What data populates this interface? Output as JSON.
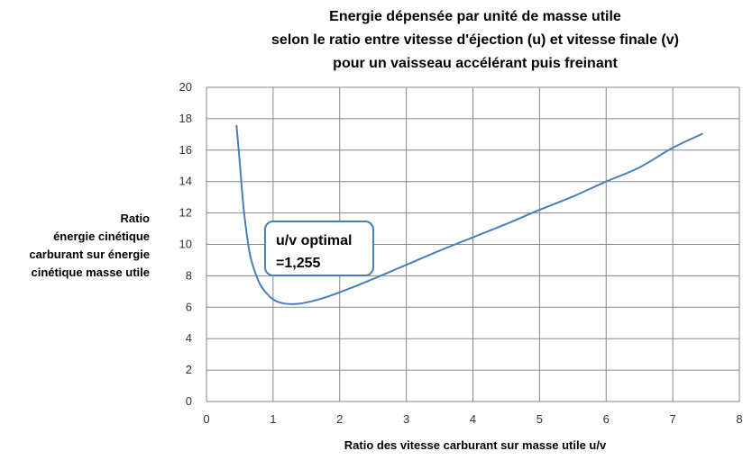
{
  "chart_data": {
    "type": "line",
    "title": [
      "Energie dépensée  par unité de masse utile",
      "selon le ratio entre vitesse d'éjection (u) et vitesse finale (v)",
      "pour un vaisseau accélérant puis freinant"
    ],
    "xlabel": "Ratio des vitesse carburant sur masse utile u/v",
    "ylabel": [
      "Ratio",
      "énergie cinétique",
      "carburant sur énergie",
      "cinétique masse utile"
    ],
    "xlim": [
      0,
      8
    ],
    "ylim": [
      0,
      20
    ],
    "xticks": [
      0,
      1,
      2,
      3,
      4,
      5,
      6,
      7,
      8
    ],
    "yticks": [
      0,
      2,
      4,
      6,
      8,
      10,
      12,
      14,
      16,
      18,
      20
    ],
    "grid": true,
    "legend": "none",
    "series_color": "#4a7ebb",
    "annotation": {
      "lines": [
        "u/v optimal",
        "=1,255"
      ],
      "border_color": "#4a7ebb"
    },
    "series": [
      {
        "points": [
          [
            0.45,
            17.6
          ],
          [
            0.5,
            15.2
          ],
          [
            0.55,
            12.6
          ],
          [
            0.6,
            10.8
          ],
          [
            0.65,
            9.4
          ],
          [
            0.7,
            8.6
          ],
          [
            0.8,
            7.5
          ],
          [
            0.9,
            6.9
          ],
          [
            1.0,
            6.5
          ],
          [
            1.1,
            6.3
          ],
          [
            1.255,
            6.2
          ],
          [
            1.4,
            6.23
          ],
          [
            1.6,
            6.4
          ],
          [
            1.8,
            6.65
          ],
          [
            2.0,
            6.95
          ],
          [
            2.5,
            7.8
          ],
          [
            3.0,
            8.7
          ],
          [
            3.5,
            9.6
          ],
          [
            4.0,
            10.45
          ],
          [
            4.5,
            11.3
          ],
          [
            5.0,
            12.2
          ],
          [
            5.5,
            13.05
          ],
          [
            6.0,
            14.0
          ],
          [
            6.5,
            14.9
          ],
          [
            7.0,
            16.15
          ],
          [
            7.45,
            17.05
          ]
        ]
      }
    ]
  }
}
